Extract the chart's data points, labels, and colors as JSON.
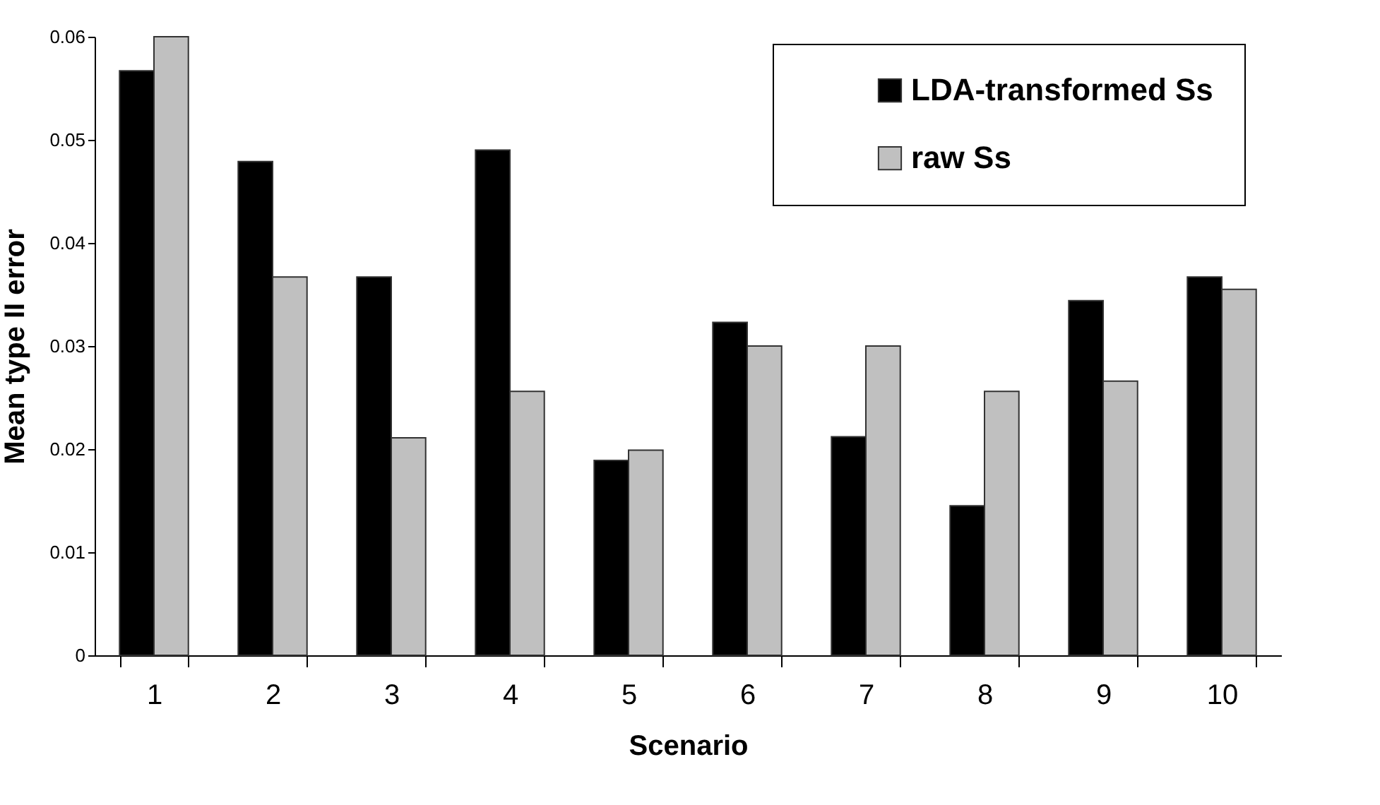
{
  "chart_data": {
    "type": "bar",
    "xlabel": "Scenario",
    "ylabel": "Mean type II error",
    "categories": [
      "1",
      "2",
      "3",
      "4",
      "5",
      "6",
      "7",
      "8",
      "9",
      "10"
    ],
    "series": [
      {
        "name": "LDA-transformed Ss",
        "color": "#000000",
        "values": [
          0.0567,
          0.0479,
          0.0367,
          0.049,
          0.0189,
          0.0323,
          0.0212,
          0.0145,
          0.0344,
          0.0367
        ]
      },
      {
        "name": "raw Ss",
        "color": "#c0c0c0",
        "values": [
          0.06,
          0.0367,
          0.0211,
          0.0256,
          0.0199,
          0.03,
          0.03,
          0.0256,
          0.0266,
          0.0355
        ]
      }
    ],
    "ylim": [
      0,
      0.06
    ],
    "yticks": [
      0,
      0.01,
      0.02,
      0.03,
      0.04,
      0.05,
      0.06
    ],
    "grid": false,
    "legend": "top right"
  }
}
